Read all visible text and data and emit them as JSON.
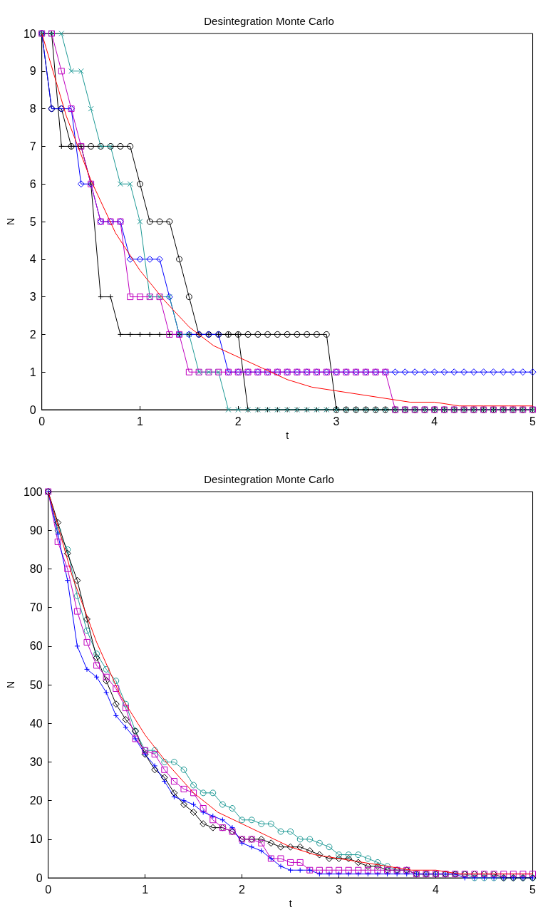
{
  "chart_data": [
    {
      "type": "line",
      "title": "Desintegration Monte Carlo",
      "xlabel": "t",
      "ylabel": "N",
      "x": [
        0,
        0.1,
        0.2,
        0.3,
        0.4,
        0.5,
        0.6,
        0.7,
        0.8,
        0.9,
        1,
        1.1,
        1.2,
        1.3,
        1.4,
        1.5,
        1.6,
        1.7,
        1.8,
        1.9,
        2,
        2.1,
        2.2,
        2.3,
        2.4,
        2.5,
        2.6,
        2.7,
        2.8,
        2.9,
        3,
        3.1,
        3.2,
        3.3,
        3.4,
        3.5,
        3.6,
        3.7,
        3.8,
        3.9,
        4,
        4.1,
        4.2,
        4.3,
        4.4,
        4.5,
        4.6,
        4.7,
        4.8,
        4.9,
        5
      ],
      "xlim": [
        0,
        5
      ],
      "xticks": [
        0,
        1,
        2,
        3,
        4,
        5
      ],
      "ylim": [
        0,
        10
      ],
      "yticks": [
        0,
        1,
        2,
        3,
        4,
        5,
        6,
        7,
        8,
        9,
        10
      ],
      "grid": false,
      "line_style": "solid",
      "series": [
        {
          "color": "#000000",
          "marker": "circle",
          "values": [
            10,
            8,
            8,
            7,
            7,
            7,
            7,
            7,
            7,
            7,
            6,
            5,
            5,
            5,
            4,
            3,
            2,
            2,
            2,
            2,
            2,
            2,
            2,
            2,
            2,
            2,
            2,
            2,
            2,
            2,
            0,
            0,
            0,
            0,
            0,
            0,
            0,
            0,
            0,
            0,
            0,
            0,
            0,
            0,
            0,
            0,
            0,
            0,
            0,
            0,
            0
          ]
        },
        {
          "color": "#000000",
          "marker": "plus",
          "values": [
            10,
            10,
            7,
            7,
            7,
            6,
            3,
            3,
            2,
            2,
            2,
            2,
            2,
            2,
            2,
            2,
            2,
            2,
            2,
            2,
            2,
            0,
            0,
            0,
            0,
            0,
            0,
            0,
            0,
            0,
            0,
            0,
            0,
            0,
            0,
            0,
            0,
            0,
            0,
            0,
            0,
            0,
            0,
            0,
            0,
            0,
            0,
            0,
            0,
            0,
            0
          ]
        },
        {
          "color": "#0000ff",
          "marker": "diamond",
          "values": [
            10,
            8,
            8,
            8,
            6,
            6,
            5,
            5,
            5,
            4,
            4,
            4,
            4,
            3,
            2,
            2,
            2,
            2,
            2,
            1,
            1,
            1,
            1,
            1,
            1,
            1,
            1,
            1,
            1,
            1,
            1,
            1,
            1,
            1,
            1,
            1,
            1,
            1,
            1,
            1,
            1,
            1,
            1,
            1,
            1,
            1,
            1,
            1,
            1,
            1,
            1
          ]
        },
        {
          "color": "#bf00bf",
          "marker": "square",
          "values": [
            10,
            10,
            9,
            8,
            7,
            6,
            5,
            5,
            5,
            3,
            3,
            3,
            3,
            2,
            2,
            1,
            1,
            1,
            1,
            1,
            1,
            1,
            1,
            1,
            1,
            1,
            1,
            1,
            1,
            1,
            1,
            1,
            1,
            1,
            1,
            1,
            0,
            0,
            0,
            0,
            0,
            0,
            0,
            0,
            0,
            0,
            0,
            0,
            0,
            0,
            0
          ]
        },
        {
          "color": "#1f9a96",
          "marker": "cross",
          "values": [
            10,
            10,
            10,
            9,
            9,
            8,
            7,
            7,
            6,
            6,
            5,
            3,
            3,
            3,
            2,
            2,
            1,
            1,
            1,
            0,
            0,
            0,
            0,
            0,
            0,
            0,
            0,
            0,
            0,
            0,
            0,
            0,
            0,
            0,
            0,
            0,
            0,
            0,
            0,
            0,
            0,
            0,
            0,
            0,
            0,
            0,
            0,
            0,
            0,
            0,
            0
          ]
        },
        {
          "color": "#ff0000",
          "marker": "none",
          "x": [
            0,
            0.25,
            0.5,
            0.75,
            1,
            1.25,
            1.5,
            1.75,
            2,
            2.25,
            2.5,
            2.75,
            3,
            3.25,
            3.5,
            3.75,
            4,
            4.25,
            4.5,
            4.75,
            5
          ],
          "values": [
            10,
            7.8,
            6.1,
            4.7,
            3.7,
            2.9,
            2.2,
            1.7,
            1.4,
            1.1,
            0.8,
            0.6,
            0.5,
            0.4,
            0.3,
            0.2,
            0.2,
            0.1,
            0.1,
            0.1,
            0.1
          ]
        }
      ]
    },
    {
      "type": "line",
      "title": "Desintegration Monte Carlo",
      "xlabel": "t",
      "ylabel": "N",
      "x": [
        0,
        0.1,
        0.2,
        0.3,
        0.4,
        0.5,
        0.6,
        0.7,
        0.8,
        0.9,
        1,
        1.1,
        1.2,
        1.3,
        1.4,
        1.5,
        1.6,
        1.7,
        1.8,
        1.9,
        2,
        2.1,
        2.2,
        2.3,
        2.4,
        2.5,
        2.6,
        2.7,
        2.8,
        2.9,
        3,
        3.1,
        3.2,
        3.3,
        3.4,
        3.5,
        3.6,
        3.7,
        3.8,
        3.9,
        4,
        4.1,
        4.2,
        4.3,
        4.4,
        4.5,
        4.6,
        4.7,
        4.8,
        4.9,
        5
      ],
      "xlim": [
        0,
        5
      ],
      "xticks": [
        0,
        1,
        2,
        3,
        4,
        5
      ],
      "ylim": [
        0,
        100
      ],
      "yticks": [
        0,
        10,
        20,
        30,
        40,
        50,
        60,
        70,
        80,
        90,
        100
      ],
      "grid": false,
      "line_style": "solid",
      "series": [
        {
          "color": "#1f9a96",
          "marker": "circle",
          "values": [
            100,
            90,
            85,
            73,
            64,
            58,
            54,
            51,
            45,
            38,
            33,
            33,
            30,
            30,
            28,
            24,
            22,
            22,
            19,
            18,
            15,
            15,
            14,
            14,
            12,
            12,
            10,
            10,
            9,
            8,
            6,
            6,
            6,
            5,
            4,
            3,
            2,
            2,
            1,
            1,
            1,
            1,
            1,
            1,
            0,
            0,
            0,
            0,
            0,
            0,
            0
          ]
        },
        {
          "color": "#000000",
          "marker": "diamond",
          "values": [
            100,
            92,
            84,
            77,
            67,
            57,
            51,
            45,
            41,
            38,
            32,
            28,
            26,
            22,
            19,
            17,
            14,
            13,
            13,
            12,
            10,
            10,
            10,
            9,
            8,
            8,
            8,
            7,
            6,
            5,
            5,
            5,
            4,
            3,
            3,
            2,
            2,
            2,
            1,
            1,
            1,
            1,
            1,
            1,
            1,
            1,
            1,
            0,
            0,
            0,
            0
          ]
        },
        {
          "color": "#bf00bf",
          "marker": "square",
          "values": [
            100,
            87,
            80,
            69,
            61,
            55,
            52,
            49,
            44,
            36,
            33,
            32,
            28,
            25,
            23,
            22,
            18,
            15,
            13,
            12,
            10,
            10,
            9,
            5,
            5,
            4,
            4,
            2,
            2,
            2,
            2,
            2,
            2,
            2,
            2,
            2,
            2,
            2,
            1,
            1,
            1,
            1,
            1,
            1,
            1,
            1,
            1,
            1,
            1,
            1,
            1
          ]
        },
        {
          "color": "#0000ff",
          "marker": "plus",
          "values": [
            100,
            89,
            77,
            60,
            54,
            52,
            48,
            42,
            39,
            36,
            32,
            29,
            25,
            21,
            20,
            19,
            17,
            16,
            15,
            13,
            9,
            8,
            7,
            5,
            3,
            2,
            2,
            2,
            1,
            1,
            1,
            1,
            1,
            1,
            1,
            1,
            1,
            1,
            1,
            1,
            1,
            1,
            1,
            0,
            0,
            0,
            0,
            0,
            0,
            0,
            0
          ]
        },
        {
          "color": "#ff0000",
          "marker": "none",
          "x": [
            0,
            0.25,
            0.5,
            0.75,
            1,
            1.25,
            1.5,
            1.75,
            2,
            2.25,
            2.5,
            2.75,
            3,
            3.25,
            3.5,
            3.75,
            4,
            4.25,
            4.5,
            4.75,
            5
          ],
          "values": [
            100,
            78,
            61,
            47,
            37,
            29,
            22,
            17,
            14,
            11,
            8,
            6,
            5,
            4,
            3,
            2,
            2,
            1,
            1,
            1,
            1
          ]
        }
      ]
    }
  ]
}
